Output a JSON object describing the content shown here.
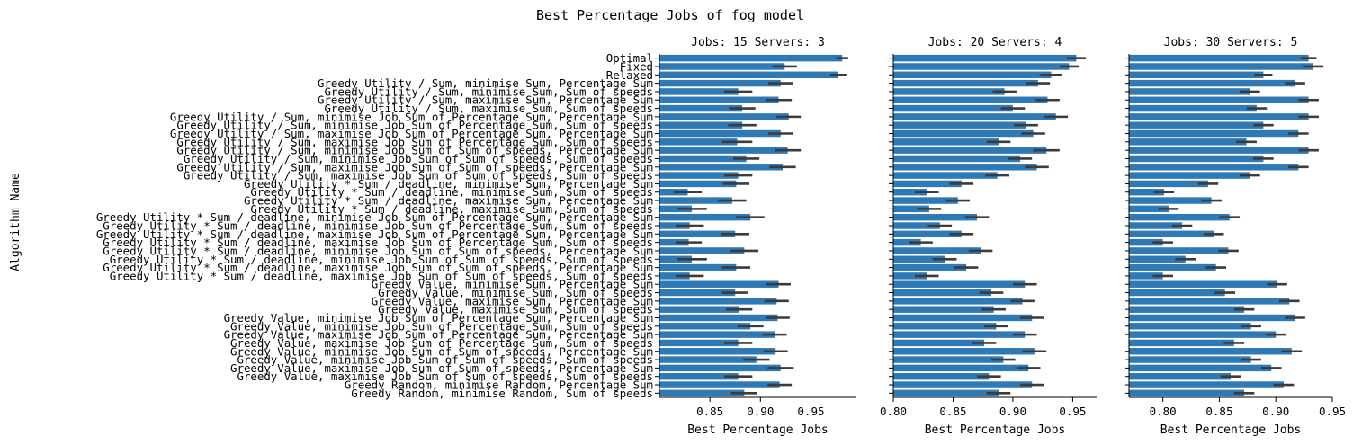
{
  "chart_data": {
    "type": "bar",
    "orientation": "horizontal",
    "title": "Best Percentage Jobs of fog model",
    "ylabel": "Algorithm Name",
    "series_color": "#2f79b5",
    "error_bar_color": "#3b3b3b",
    "categories": [
      "Optimal",
      "Fixed",
      "Relaxed",
      "Greedy Utility / Sum, minimise Sum, Percentage Sum",
      "Greedy Utility / Sum, minimise Sum, Sum of speeds",
      "Greedy Utility / Sum, maximise Sum, Percentage Sum",
      "Greedy Utility / Sum, maximise Sum, Sum of speeds",
      "Greedy Utility / Sum, minimise Job Sum of Percentage Sum, Percentage Sum",
      "Greedy Utility / Sum, minimise Job Sum of Percentage Sum, Sum of speeds",
      "Greedy Utility / Sum, maximise Job Sum of Percentage Sum, Percentage Sum",
      "Greedy Utility / Sum, maximise Job Sum of Percentage Sum, Sum of speeds",
      "Greedy Utility / Sum, minimise Job Sum of Sum of speeds, Percentage Sum",
      "Greedy Utility / Sum, minimise Job Sum of Sum of speeds, Sum of speeds",
      "Greedy Utility / Sum, maximise Job Sum of Sum of speeds, Percentage Sum",
      "Greedy Utility / Sum, maximise Job Sum of Sum of speeds, Sum of speeds",
      "Greedy Utility * Sum / deadline, minimise Sum, Percentage Sum",
      "Greedy Utility * Sum / deadline, minimise Sum, Sum of speeds",
      "Greedy Utility * Sum / deadline, maximise Sum, Percentage Sum",
      "Greedy Utility * Sum / deadline, maximise Sum, Sum of speeds",
      "Greedy Utility * Sum / deadline, minimise Job Sum of Percentage Sum, Percentage Sum",
      "Greedy Utility * Sum / deadline, minimise Job Sum of Percentage Sum, Sum of speeds",
      "Greedy Utility * Sum / deadline, maximise Job Sum of Percentage Sum, Percentage Sum",
      "Greedy Utility * Sum / deadline, maximise Job Sum of Percentage Sum, Sum of speeds",
      "Greedy Utility * Sum / deadline, minimise Job Sum of Sum of speeds, Percentage Sum",
      "Greedy Utility * Sum / deadline, minimise Job Sum of Sum of speeds, Sum of speeds",
      "Greedy Utility * Sum / deadline, maximise Job Sum of Sum of speeds, Percentage Sum",
      "Greedy Utility * Sum / deadline, maximise Job Sum of Sum of speeds, Sum of speeds",
      "Greedy Value, minimise Sum, Percentage Sum",
      "Greedy Value, minimise Sum, Sum of speeds",
      "Greedy Value, maximise Sum, Percentage Sum",
      "Greedy Value, maximise Sum, Sum of speeds",
      "Greedy Value, minimise Job Sum of Percentage Sum, Percentage Sum",
      "Greedy Value, minimise Job Sum of Percentage Sum, Sum of speeds",
      "Greedy Value, maximise Job Sum of Percentage Sum, Percentage Sum",
      "Greedy Value, maximise Job Sum of Percentage Sum, Sum of speeds",
      "Greedy Value, minimise Job Sum of Sum of speeds, Percentage Sum",
      "Greedy Value, minimise Job Sum of Sum of speeds, Sum of speeds",
      "Greedy Value, maximise Job Sum of Sum of speeds, Percentage Sum",
      "Greedy Value, maximise Job Sum of Sum of speeds, Sum of speeds",
      "Greedy Random, minimise Random, Percentage Sum",
      "Greedy Random, minimise Random, Sum of speeds"
    ],
    "panels": [
      {
        "title": "Jobs: 15 Servers: 3",
        "xlabel": "Best Percentage Jobs",
        "xlim": [
          0.8,
          0.995
        ],
        "xticks": [
          0.85,
          0.9,
          0.95
        ],
        "xtick_labels": [
          "0.85",
          "0.90",
          "0.95"
        ],
        "values": [
          0.981,
          0.924,
          0.977,
          0.92,
          0.878,
          0.918,
          0.882,
          0.928,
          0.882,
          0.92,
          0.877,
          0.927,
          0.886,
          0.922,
          0.878,
          0.876,
          0.828,
          0.872,
          0.832,
          0.89,
          0.83,
          0.875,
          0.829,
          0.884,
          0.832,
          0.876,
          0.83,
          0.918,
          0.875,
          0.916,
          0.879,
          0.917,
          0.89,
          0.914,
          0.878,
          0.915,
          0.896,
          0.92,
          0.878,
          0.919,
          0.884
        ],
        "errors": [
          0.006,
          0.012,
          0.008,
          0.012,
          0.014,
          0.013,
          0.013,
          0.012,
          0.014,
          0.012,
          0.015,
          0.013,
          0.013,
          0.013,
          0.014,
          0.013,
          0.014,
          0.014,
          0.015,
          0.014,
          0.014,
          0.014,
          0.013,
          0.014,
          0.015,
          0.014,
          0.014,
          0.012,
          0.013,
          0.012,
          0.013,
          0.012,
          0.013,
          0.012,
          0.014,
          0.012,
          0.013,
          0.013,
          0.014,
          0.012,
          0.013
        ]
      },
      {
        "title": "Jobs: 20 Servers: 4",
        "xlabel": "Best Percentage Jobs",
        "xlim": [
          0.8,
          0.97
        ],
        "xticks": [
          0.8,
          0.85,
          0.9,
          0.95
        ],
        "xtick_labels": [
          "0.80",
          "0.85",
          "0.90",
          "0.95"
        ],
        "values": [
          0.953,
          0.947,
          0.932,
          0.921,
          0.893,
          0.929,
          0.9,
          0.936,
          0.911,
          0.917,
          0.888,
          0.928,
          0.906,
          0.92,
          0.887,
          0.857,
          0.828,
          0.854,
          0.83,
          0.87,
          0.839,
          0.857,
          0.823,
          0.873,
          0.843,
          0.861,
          0.828,
          0.91,
          0.882,
          0.908,
          0.884,
          0.916,
          0.886,
          0.91,
          0.876,
          0.918,
          0.892,
          0.913,
          0.88,
          0.916,
          0.888
        ],
        "errors": [
          0.008,
          0.008,
          0.009,
          0.01,
          0.01,
          0.01,
          0.01,
          0.01,
          0.01,
          0.01,
          0.01,
          0.011,
          0.01,
          0.01,
          0.01,
          0.01,
          0.01,
          0.01,
          0.01,
          0.01,
          0.01,
          0.01,
          0.01,
          0.01,
          0.01,
          0.01,
          0.01,
          0.01,
          0.01,
          0.01,
          0.01,
          0.01,
          0.01,
          0.01,
          0.01,
          0.01,
          0.01,
          0.01,
          0.01,
          0.01,
          0.01
        ]
      },
      {
        "title": "Jobs: 30 Servers: 5",
        "xlabel": "Best Percentage Jobs",
        "xlim": [
          0.77,
          0.95
        ],
        "xticks": [
          0.8,
          0.85,
          0.9,
          0.95
        ],
        "xtick_labels": [
          "0.80",
          "0.85",
          "0.90",
          "0.95"
        ],
        "values": [
          0.929,
          0.933,
          0.889,
          0.917,
          0.877,
          0.929,
          0.883,
          0.929,
          0.889,
          0.92,
          0.874,
          0.929,
          0.889,
          0.92,
          0.877,
          0.84,
          0.801,
          0.843,
          0.805,
          0.859,
          0.817,
          0.845,
          0.8,
          0.858,
          0.82,
          0.847,
          0.8,
          0.901,
          0.855,
          0.912,
          0.872,
          0.917,
          0.878,
          0.9,
          0.863,
          0.914,
          0.878,
          0.896,
          0.86,
          0.907,
          0.872
        ],
        "errors": [
          0.007,
          0.009,
          0.008,
          0.009,
          0.009,
          0.009,
          0.009,
          0.009,
          0.009,
          0.009,
          0.009,
          0.009,
          0.009,
          0.009,
          0.009,
          0.009,
          0.009,
          0.009,
          0.009,
          0.009,
          0.009,
          0.009,
          0.009,
          0.009,
          0.009,
          0.009,
          0.009,
          0.009,
          0.009,
          0.009,
          0.009,
          0.009,
          0.009,
          0.009,
          0.009,
          0.009,
          0.009,
          0.009,
          0.009,
          0.009,
          0.009
        ]
      }
    ]
  }
}
